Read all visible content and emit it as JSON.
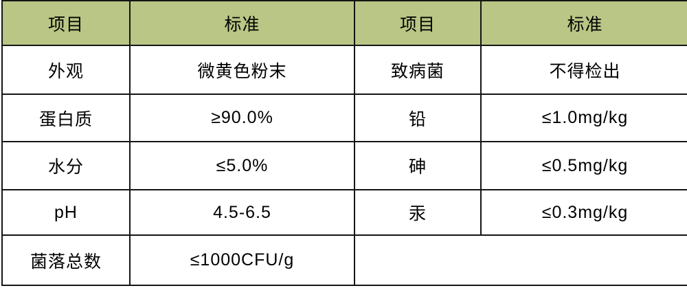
{
  "colors": {
    "header_background": "#b9c685",
    "grid_border": "#141414",
    "cell_background": "#ffffff",
    "text": "#000000"
  },
  "table": {
    "left": {
      "header": {
        "item": "项目",
        "standard": "标准"
      },
      "rows": [
        {
          "item": "外观",
          "standard": "微黄色粉末"
        },
        {
          "item": "蛋白质",
          "standard": "≥90.0%"
        },
        {
          "item": "水分",
          "standard": "≤5.0%"
        },
        {
          "item": "pH",
          "standard": "4.5-6.5"
        },
        {
          "item": "菌落总数",
          "standard": "≤1000CFU/g"
        }
      ]
    },
    "right": {
      "header": {
        "item": "项目",
        "standard": "标准"
      },
      "rows": [
        {
          "item": "致病菌",
          "standard": "不得检出"
        },
        {
          "item": "铅",
          "standard": "≤1.0mg/kg"
        },
        {
          "item": "砷",
          "standard": "≤0.5mg/kg"
        },
        {
          "item": "汞",
          "standard": "≤0.3mg/kg"
        }
      ],
      "empty_cell": ""
    }
  }
}
